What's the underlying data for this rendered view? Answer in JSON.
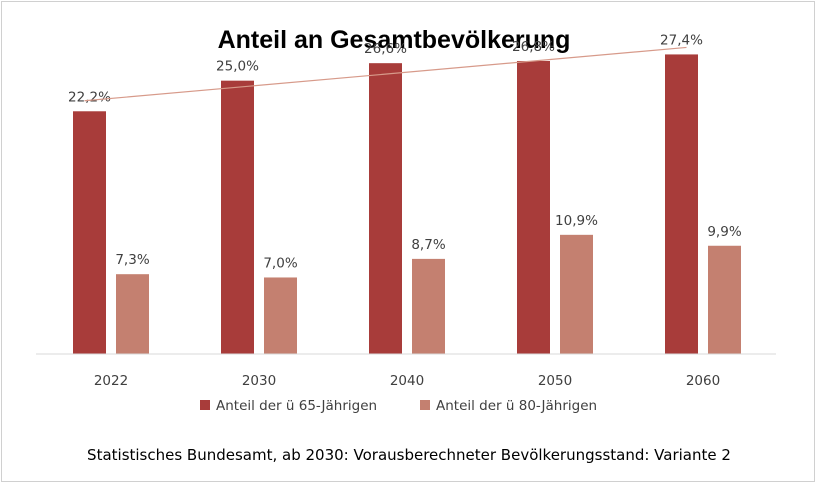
{
  "chart_data": {
    "type": "bar",
    "title": "Anteil an Gesamtbevölkerung",
    "categories": [
      "2022",
      "2030",
      "2040",
      "2050",
      "2060"
    ],
    "series": [
      {
        "name": "Anteil der ü 65-Jährigen",
        "values": [
          22.2,
          25.0,
          26.6,
          26.8,
          27.4
        ],
        "labels": [
          "22,2%",
          "25,0%",
          "26,6%",
          "26,8%",
          "27,4%"
        ],
        "color": "#a83c3a"
      },
      {
        "name": "Anteil der ü 80-Jährigen",
        "values": [
          7.3,
          7.0,
          8.7,
          10.9,
          9.9
        ],
        "labels": [
          "7,3%",
          "7,0%",
          "8,7%",
          "10,9%",
          "9,9%"
        ],
        "color": "#c48070"
      }
    ],
    "trendline": {
      "series": "Anteil der ü 65-Jährigen",
      "type": "linear",
      "color": "#d79a8a"
    },
    "ylim": [
      0,
      30
    ],
    "grid": false,
    "legend_position": "bottom",
    "source": "Statistisches Bundesamt, ab 2030: Vorausberechneter Bevölkerungsstand: Variante 2"
  }
}
